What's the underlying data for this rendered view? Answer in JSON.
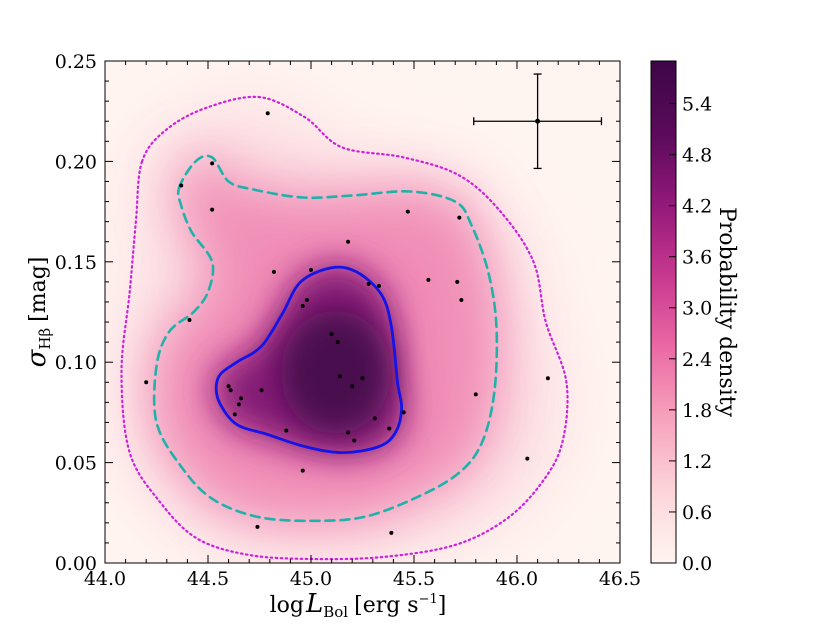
{
  "chart_data": {
    "type": "density_scatter",
    "title": "",
    "xlabel": "log L_Bol [erg s^-1]",
    "xlabel_parts": {
      "log": "log",
      "L": "L",
      "sub": "Bol",
      "units_pre": "[erg s",
      "sup": "−1",
      "units_post": "]"
    },
    "ylabel": "σ_Hβ [mag]",
    "ylabel_parts": {
      "sigma": "σ",
      "sub": "Hβ",
      "units": "[mag]"
    },
    "xlim": [
      44.0,
      46.5
    ],
    "ylim": [
      0.0,
      0.25
    ],
    "xticks": [
      44.0,
      44.5,
      45.0,
      45.5,
      46.0,
      46.5
    ],
    "xtick_labels": [
      "44.0",
      "44.5",
      "45.0",
      "45.5",
      "46.0",
      "46.5"
    ],
    "yticks": [
      0.0,
      0.05,
      0.1,
      0.15,
      0.2,
      0.25
    ],
    "ytick_labels": [
      "0.00",
      "0.05",
      "0.10",
      "0.15",
      "0.20",
      "0.25"
    ],
    "colorbar": {
      "label": "Probability density",
      "range": [
        0.0,
        5.9
      ],
      "ticks": [
        0.0,
        0.6,
        1.2,
        1.8,
        2.4,
        3.0,
        3.6,
        4.2,
        4.8,
        5.4
      ],
      "tick_labels": [
        "0.0",
        "0.6",
        "1.2",
        "1.8",
        "2.4",
        "3.0",
        "3.6",
        "4.2",
        "4.8",
        "5.4"
      ],
      "colors": [
        "#fff5f0",
        "#fcd5da",
        "#f7a3bd",
        "#ea6aa4",
        "#c8388f",
        "#93197a",
        "#5a0a5a",
        "#3d0647"
      ]
    },
    "contours": [
      {
        "name": "inner",
        "style": "solid",
        "color": "#1414e6",
        "points": [
          [
            44.56,
            0.094
          ],
          [
            44.64,
            0.1
          ],
          [
            44.76,
            0.108
          ],
          [
            44.86,
            0.124
          ],
          [
            44.95,
            0.14
          ],
          [
            45.1,
            0.147
          ],
          [
            45.22,
            0.145
          ],
          [
            45.34,
            0.134
          ],
          [
            45.39,
            0.118
          ],
          [
            45.42,
            0.09
          ],
          [
            45.44,
            0.077
          ],
          [
            45.41,
            0.065
          ],
          [
            45.33,
            0.058
          ],
          [
            45.15,
            0.055
          ],
          [
            44.97,
            0.058
          ],
          [
            44.79,
            0.064
          ],
          [
            44.64,
            0.069
          ],
          [
            44.56,
            0.079
          ],
          [
            44.54,
            0.087
          ]
        ]
      },
      {
        "name": "middle",
        "style": "dashed",
        "color": "#20b2aa",
        "points": [
          [
            44.36,
            0.187
          ],
          [
            44.44,
            0.2
          ],
          [
            44.52,
            0.202
          ],
          [
            44.6,
            0.19
          ],
          [
            44.72,
            0.186
          ],
          [
            44.96,
            0.182
          ],
          [
            45.2,
            0.183
          ],
          [
            45.48,
            0.185
          ],
          [
            45.7,
            0.18
          ],
          [
            45.78,
            0.168
          ],
          [
            45.86,
            0.145
          ],
          [
            45.9,
            0.118
          ],
          [
            45.89,
            0.085
          ],
          [
            45.83,
            0.06
          ],
          [
            45.72,
            0.045
          ],
          [
            45.52,
            0.033
          ],
          [
            45.26,
            0.023
          ],
          [
            45.0,
            0.021
          ],
          [
            44.74,
            0.023
          ],
          [
            44.52,
            0.032
          ],
          [
            44.37,
            0.048
          ],
          [
            44.25,
            0.07
          ],
          [
            44.25,
            0.098
          ],
          [
            44.31,
            0.115
          ],
          [
            44.43,
            0.125
          ],
          [
            44.5,
            0.135
          ],
          [
            44.52,
            0.15
          ],
          [
            44.42,
            0.165
          ],
          [
            44.37,
            0.178
          ]
        ]
      },
      {
        "name": "outer",
        "style": "dotted",
        "color": "#cc22dd",
        "points": [
          [
            44.18,
            0.2
          ],
          [
            44.3,
            0.216
          ],
          [
            44.5,
            0.227
          ],
          [
            44.75,
            0.232
          ],
          [
            44.97,
            0.222
          ],
          [
            45.15,
            0.207
          ],
          [
            45.45,
            0.202
          ],
          [
            45.72,
            0.193
          ],
          [
            45.92,
            0.175
          ],
          [
            46.08,
            0.15
          ],
          [
            46.14,
            0.12
          ],
          [
            46.24,
            0.09
          ],
          [
            46.22,
            0.06
          ],
          [
            46.12,
            0.04
          ],
          [
            45.95,
            0.022
          ],
          [
            45.7,
            0.009
          ],
          [
            45.35,
            0.003
          ],
          [
            45.0,
            0.002
          ],
          [
            44.7,
            0.004
          ],
          [
            44.45,
            0.012
          ],
          [
            44.27,
            0.03
          ],
          [
            44.12,
            0.055
          ],
          [
            44.08,
            0.095
          ],
          [
            44.12,
            0.135
          ],
          [
            44.15,
            0.17
          ]
        ]
      }
    ],
    "points": [
      [
        44.79,
        0.224
      ],
      [
        44.52,
        0.199
      ],
      [
        44.37,
        0.188
      ],
      [
        44.52,
        0.176
      ],
      [
        45.47,
        0.175
      ],
      [
        45.72,
        0.172
      ],
      [
        45.18,
        0.16
      ],
      [
        45.0,
        0.146
      ],
      [
        44.82,
        0.145
      ],
      [
        45.57,
        0.141
      ],
      [
        45.71,
        0.14
      ],
      [
        45.28,
        0.139
      ],
      [
        45.33,
        0.138
      ],
      [
        45.73,
        0.131
      ],
      [
        44.98,
        0.131
      ],
      [
        44.96,
        0.128
      ],
      [
        44.41,
        0.121
      ],
      [
        45.1,
        0.114
      ],
      [
        45.13,
        0.11
      ],
      [
        44.2,
        0.09
      ],
      [
        44.6,
        0.088
      ],
      [
        44.61,
        0.086
      ],
      [
        44.76,
        0.086
      ],
      [
        44.66,
        0.082
      ],
      [
        44.65,
        0.079
      ],
      [
        44.63,
        0.074
      ],
      [
        45.14,
        0.093
      ],
      [
        45.25,
        0.092
      ],
      [
        45.2,
        0.088
      ],
      [
        45.8,
        0.084
      ],
      [
        46.15,
        0.092
      ],
      [
        45.45,
        0.075
      ],
      [
        45.31,
        0.072
      ],
      [
        45.38,
        0.067
      ],
      [
        44.88,
        0.066
      ],
      [
        45.18,
        0.065
      ],
      [
        45.21,
        0.061
      ],
      [
        44.96,
        0.046
      ],
      [
        46.05,
        0.052
      ],
      [
        44.74,
        0.018
      ],
      [
        45.39,
        0.015
      ]
    ],
    "errorbar": {
      "x": 46.1,
      "y": 0.22,
      "xerr": 0.31,
      "yerr": 0.0235
    }
  }
}
